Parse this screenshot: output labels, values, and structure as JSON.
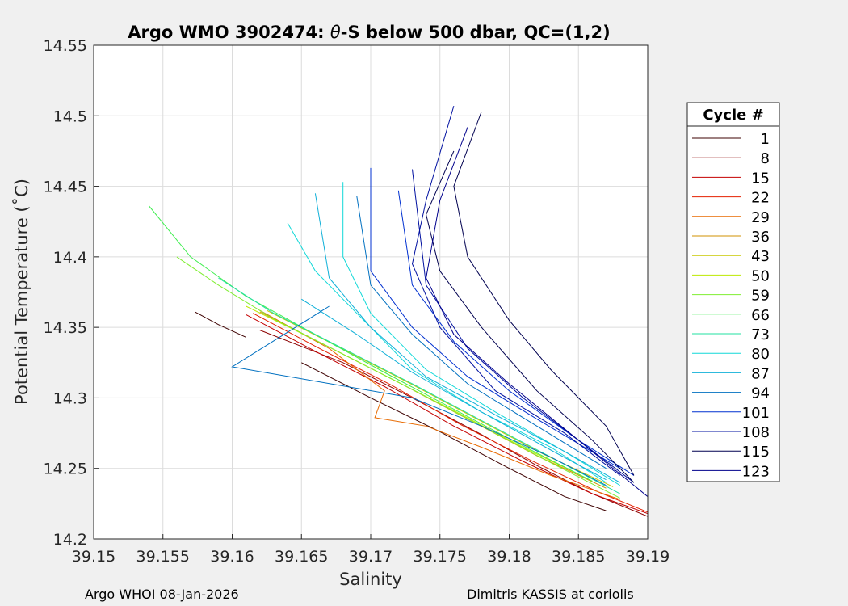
{
  "chart_data": {
    "type": "line",
    "title_prefix": "Argo WMO 3902474: ",
    "title_symbol": "θ",
    "title_suffix": "-S below 500 dbar,  QC=(1,2)",
    "xlabel": "Salinity",
    "ylabel": "Potential Temperature (˚C)",
    "xlim": [
      39.15,
      39.19
    ],
    "ylim": [
      14.2,
      14.55
    ],
    "xticks": [
      39.15,
      39.155,
      39.16,
      39.165,
      39.17,
      39.175,
      39.18,
      39.185,
      39.19
    ],
    "xtick_labels": [
      "39.15",
      "39.155",
      "39.16",
      "39.165",
      "39.17",
      "39.175",
      "39.18",
      "39.185",
      "39.19"
    ],
    "yticks": [
      14.2,
      14.25,
      14.3,
      14.35,
      14.4,
      14.45,
      14.5,
      14.55
    ],
    "ytick_labels": [
      "14.2",
      "14.25",
      "14.3",
      "14.35",
      "14.4",
      "14.45",
      "14.5",
      "14.55"
    ],
    "grid": true,
    "legend": {
      "title": "Cycle #",
      "position": "outside-right",
      "entries": [
        {
          "label": "1",
          "color": "#3d0000"
        },
        {
          "label": "8",
          "color": "#8c0000"
        },
        {
          "label": "15",
          "color": "#c40000"
        },
        {
          "label": "22",
          "color": "#e52000"
        },
        {
          "label": "29",
          "color": "#e86a00"
        },
        {
          "label": "36",
          "color": "#d29000"
        },
        {
          "label": "43",
          "color": "#c8c800"
        },
        {
          "label": "50",
          "color": "#bde800"
        },
        {
          "label": "59",
          "color": "#7fee30"
        },
        {
          "label": "66",
          "color": "#40ee50"
        },
        {
          "label": "73",
          "color": "#20e0a0"
        },
        {
          "label": "80",
          "color": "#10d8d8"
        },
        {
          "label": "87",
          "color": "#10b0d8"
        },
        {
          "label": "94",
          "color": "#0070c0"
        },
        {
          "label": "101",
          "color": "#0030d0"
        },
        {
          "label": "108",
          "color": "#0010a0"
        },
        {
          "label": "115",
          "color": "#000050"
        },
        {
          "label": "123",
          "color": "#00008c"
        }
      ]
    },
    "series": [
      {
        "cycle": 1,
        "color": "#3d0000",
        "s": [
          39.1573,
          39.159,
          39.161
        ],
        "t": [
          14.361,
          14.352,
          14.343
        ]
      },
      {
        "cycle": 1,
        "color": "#3d0000",
        "s": [
          39.165,
          39.17,
          39.175,
          39.18,
          39.184,
          39.187
        ],
        "t": [
          14.325,
          14.3,
          14.276,
          14.25,
          14.23,
          14.22
        ]
      },
      {
        "cycle": 8,
        "color": "#8c0000",
        "s": [
          39.162,
          39.168,
          39.173,
          39.178,
          39.182,
          39.186,
          39.19
        ],
        "t": [
          14.348,
          14.325,
          14.3,
          14.274,
          14.252,
          14.232,
          14.216
        ]
      },
      {
        "cycle": 15,
        "color": "#c40000",
        "s": [
          39.161,
          39.166,
          39.171,
          39.176,
          39.181,
          39.186,
          39.19
        ],
        "t": [
          14.359,
          14.333,
          14.308,
          14.28,
          14.255,
          14.232,
          14.218
        ]
      },
      {
        "cycle": 22,
        "color": "#e52000",
        "s": [
          39.1615,
          39.1665,
          39.1715,
          39.1765,
          39.1815,
          39.1865,
          39.19
        ],
        "t": [
          14.36,
          14.334,
          14.309,
          14.281,
          14.256,
          14.233,
          14.219
        ]
      },
      {
        "cycle": 29,
        "color": "#e86a00",
        "s": [
          39.162,
          39.167,
          39.171,
          39.1703,
          39.174,
          39.178,
          39.183,
          39.188
        ],
        "t": [
          14.362,
          14.335,
          14.305,
          14.286,
          14.28,
          14.265,
          14.245,
          14.228
        ]
      },
      {
        "cycle": 36,
        "color": "#d29000",
        "s": [
          39.162,
          39.167,
          39.172,
          39.177,
          39.182,
          39.187
        ],
        "t": [
          14.361,
          14.336,
          14.311,
          14.285,
          14.259,
          14.236
        ]
      },
      {
        "cycle": 43,
        "color": "#c8c800",
        "s": [
          39.1625,
          39.1675,
          39.1725,
          39.1775,
          39.1825,
          39.1875
        ],
        "t": [
          14.362,
          14.337,
          14.312,
          14.286,
          14.26,
          14.237
        ]
      },
      {
        "cycle": 50,
        "color": "#bde800",
        "s": [
          39.161,
          39.166,
          39.171,
          39.176,
          39.181,
          39.186
        ],
        "t": [
          14.365,
          14.341,
          14.316,
          14.291,
          14.265,
          14.241
        ]
      },
      {
        "cycle": 59,
        "color": "#7fee30",
        "s": [
          39.156,
          39.159,
          39.163,
          39.168,
          39.173,
          39.178,
          39.183,
          39.188
        ],
        "t": [
          14.4,
          14.38,
          14.356,
          14.331,
          14.306,
          14.28,
          14.254,
          14.229
        ]
      },
      {
        "cycle": 66,
        "color": "#40ee50",
        "s": [
          39.154,
          39.157,
          39.161,
          39.166,
          39.171,
          39.176,
          39.181,
          39.186
        ],
        "t": [
          14.436,
          14.4,
          14.372,
          14.345,
          14.318,
          14.292,
          14.266,
          14.241
        ]
      },
      {
        "cycle": 73,
        "color": "#20e0a0",
        "s": [
          39.159,
          39.163,
          39.168,
          39.173,
          39.178,
          39.183,
          39.188
        ],
        "t": [
          14.385,
          14.36,
          14.335,
          14.31,
          14.284,
          14.258,
          14.232
        ]
      },
      {
        "cycle": 80,
        "color": "#10d8d8",
        "s": [
          39.164,
          39.166,
          39.169,
          39.173,
          39.178,
          39.183,
          39.187
        ],
        "t": [
          14.424,
          14.39,
          14.36,
          14.32,
          14.29,
          14.265,
          14.24
        ]
      },
      {
        "cycle": 80,
        "color": "#10d8d8",
        "s": [
          39.168,
          39.168,
          39.17,
          39.174,
          39.179,
          39.184,
          39.188
        ],
        "t": [
          14.453,
          14.4,
          14.36,
          14.32,
          14.29,
          14.262,
          14.238
        ]
      },
      {
        "cycle": 87,
        "color": "#10b0d8",
        "s": [
          39.166,
          39.167,
          39.17,
          39.174,
          39.179,
          39.184,
          39.188
        ],
        "t": [
          14.445,
          14.385,
          14.35,
          14.315,
          14.288,
          14.262,
          14.24
        ]
      },
      {
        "cycle": 87,
        "color": "#10b0d8",
        "s": [
          39.165,
          39.169,
          39.173,
          39.178,
          39.183,
          39.187
        ],
        "t": [
          14.37,
          14.345,
          14.318,
          14.29,
          14.263,
          14.242
        ]
      },
      {
        "cycle": 94,
        "color": "#0070c0",
        "s": [
          39.167,
          39.16,
          39.173,
          39.178,
          39.183,
          39.187
        ],
        "t": [
          14.365,
          14.322,
          14.3,
          14.28,
          14.258,
          14.238
        ]
      },
      {
        "cycle": 94,
        "color": "#0070c0",
        "s": [
          39.169,
          39.17,
          39.173,
          39.177,
          39.182,
          39.187
        ],
        "t": [
          14.443,
          14.38,
          14.345,
          14.31,
          14.28,
          14.25
        ]
      },
      {
        "cycle": 101,
        "color": "#0030d0",
        "s": [
          39.17,
          39.17,
          39.173,
          39.177,
          39.182,
          39.188
        ],
        "t": [
          14.463,
          14.39,
          14.35,
          14.315,
          14.285,
          14.25
        ]
      },
      {
        "cycle": 101,
        "color": "#0030d0",
        "s": [
          39.172,
          39.173,
          39.176,
          39.18,
          39.185,
          39.189
        ],
        "t": [
          14.447,
          14.38,
          14.34,
          14.305,
          14.27,
          14.245
        ]
      },
      {
        "cycle": 108,
        "color": "#0010a0",
        "s": [
          39.173,
          39.174,
          39.177,
          39.181,
          39.185,
          39.189
        ],
        "t": [
          14.462,
          14.38,
          14.335,
          14.3,
          14.27,
          14.24
        ]
      },
      {
        "cycle": 108,
        "color": "#0010a0",
        "s": [
          39.176,
          39.174,
          39.173,
          39.175,
          39.179,
          39.184,
          39.188
        ],
        "t": [
          14.507,
          14.44,
          14.395,
          14.35,
          14.305,
          14.275,
          14.245
        ]
      },
      {
        "cycle": 115,
        "color": "#000050",
        "s": [
          39.176,
          39.174,
          39.175,
          39.178,
          39.182,
          39.186,
          39.189
        ],
        "t": [
          14.475,
          14.43,
          14.39,
          14.35,
          14.305,
          14.27,
          14.24
        ]
      },
      {
        "cycle": 115,
        "color": "#000050",
        "s": [
          39.178,
          39.176,
          39.177,
          39.18,
          39.183,
          39.187,
          39.189
        ],
        "t": [
          14.503,
          14.45,
          14.4,
          14.355,
          14.32,
          14.28,
          14.245
        ]
      },
      {
        "cycle": 123,
        "color": "#00008c",
        "s": [
          39.177,
          39.175,
          39.174,
          39.176,
          39.18,
          39.185,
          39.19
        ],
        "t": [
          14.492,
          14.44,
          14.385,
          14.345,
          14.31,
          14.27,
          14.23
        ]
      }
    ]
  },
  "footer": {
    "left": "Argo WHOI 08-Jan-2026",
    "right": "Dimitris KASSIS at coriolis"
  }
}
